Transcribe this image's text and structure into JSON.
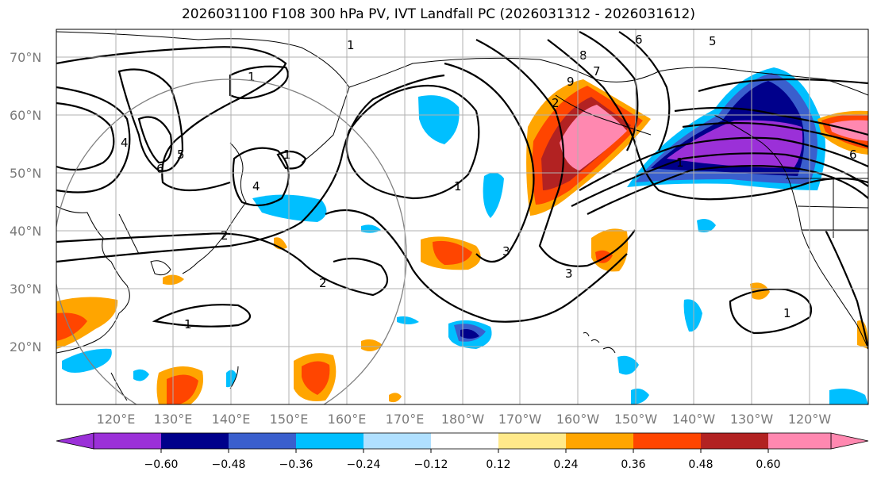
{
  "title": "2026031100 F108 300 hPa PV, IVT Landfall PC (2026031312 - 2026031612)",
  "lat_labels": [
    "70°N",
    "60°N",
    "50°N",
    "40°N",
    "30°N",
    "20°N"
  ],
  "lon_labels": [
    "120°E",
    "130°E",
    "140°E",
    "150°E",
    "160°E",
    "170°E",
    "180°W",
    "170°W",
    "160°W",
    "150°W",
    "140°W",
    "130°W",
    "120°W"
  ],
  "colorbar": {
    "ticks": [
      "−0.60",
      "−0.48",
      "−0.36",
      "−0.24",
      "−0.12",
      "0.12",
      "0.24",
      "0.36",
      "0.48",
      "0.60"
    ],
    "colors": [
      "#9b30d8",
      "#00008b",
      "#3a5fcd",
      "#00bfff",
      "#b0e0ff",
      "#ffffff",
      "#ffe98a",
      "#ffa500",
      "#ff4500",
      "#b22222",
      "#ff88b0"
    ]
  },
  "contour_labels": [
    "1",
    "1",
    "1",
    "1",
    "1",
    "1",
    "1",
    "2",
    "2",
    "2",
    "3",
    "3",
    "4",
    "4",
    "5",
    "5",
    "6",
    "6",
    "6",
    "7",
    "8",
    "9"
  ]
}
